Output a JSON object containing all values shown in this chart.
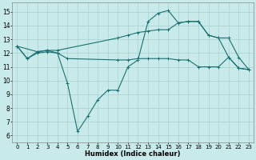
{
  "xlabel": "Humidex (Indice chaleur)",
  "background_color": "#c8eaea",
  "grid_color": "#aed4d4",
  "line_color": "#1a7070",
  "xlim": [
    -0.5,
    23.5
  ],
  "ylim": [
    5.5,
    15.7
  ],
  "xticks": [
    0,
    1,
    2,
    3,
    4,
    5,
    6,
    7,
    8,
    9,
    10,
    11,
    12,
    13,
    14,
    15,
    16,
    17,
    18,
    19,
    20,
    21,
    22,
    23
  ],
  "yticks": [
    6,
    7,
    8,
    9,
    10,
    11,
    12,
    13,
    14,
    15
  ],
  "curves": [
    {
      "x": [
        0,
        1,
        2,
        3,
        4,
        5,
        6,
        7,
        8,
        9,
        10,
        11,
        12,
        13,
        14,
        15,
        16,
        17,
        18,
        19,
        20,
        21,
        22,
        23
      ],
      "y": [
        12.5,
        11.6,
        12.1,
        12.2,
        12.0,
        9.8,
        6.3,
        7.4,
        8.6,
        9.3,
        9.3,
        11.0,
        11.5,
        14.3,
        14.9,
        15.1,
        14.2,
        14.3,
        14.3,
        13.3,
        13.1,
        11.7,
        10.9,
        10.8
      ]
    },
    {
      "x": [
        0,
        2,
        3,
        4,
        10,
        11,
        12,
        13,
        14,
        15,
        16,
        17,
        18,
        19,
        20,
        21,
        22,
        23
      ],
      "y": [
        12.5,
        12.1,
        12.2,
        12.2,
        13.1,
        13.3,
        13.5,
        13.6,
        13.7,
        13.7,
        14.2,
        14.3,
        14.3,
        13.3,
        13.1,
        13.1,
        11.7,
        10.8
      ]
    },
    {
      "x": [
        0,
        1,
        2,
        3,
        4,
        5,
        10,
        11,
        12,
        13,
        14,
        15,
        16,
        17,
        18,
        19,
        20,
        21,
        22,
        23
      ],
      "y": [
        12.5,
        11.6,
        12.0,
        12.1,
        12.0,
        11.6,
        11.5,
        11.5,
        11.6,
        11.6,
        11.6,
        11.6,
        11.5,
        11.5,
        11.0,
        11.0,
        11.0,
        11.7,
        10.9,
        10.8
      ]
    }
  ]
}
